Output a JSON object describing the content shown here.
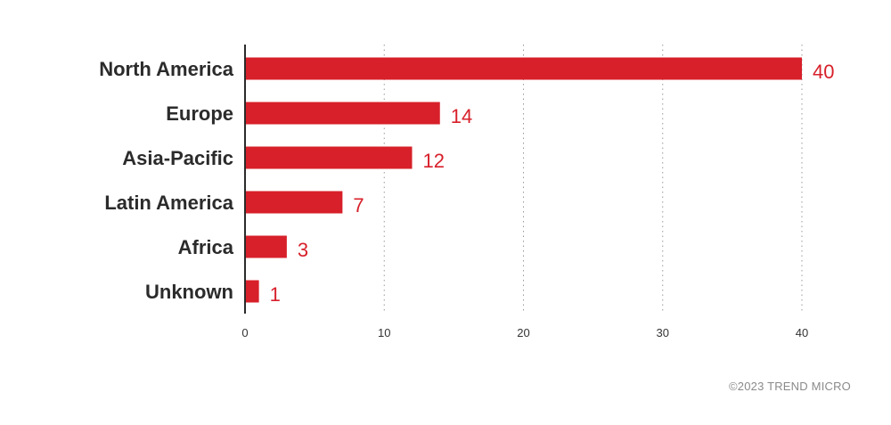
{
  "chart_data": {
    "type": "bar",
    "orientation": "horizontal",
    "categories": [
      "North America",
      "Europe",
      "Asia-Pacific",
      "Latin America",
      "Africa",
      "Unknown"
    ],
    "values": [
      40,
      14,
      12,
      7,
      3,
      1
    ],
    "xlim": [
      0,
      40
    ],
    "xticks": [
      0,
      10,
      20,
      30,
      40
    ],
    "grid": "vertical-dotted",
    "title": "",
    "xlabel": "",
    "ylabel": "",
    "bar_color": "#d7202a"
  },
  "footer": {
    "copyright": "©2023 TREND MICRO"
  },
  "colors": {
    "bar": "#d7202a",
    "axis": "#2b2b2b",
    "grid": "#9a9a9a",
    "label_text": "#2b2b2b",
    "data_label": "#d7202a",
    "footer_text": "#8a8a8a"
  }
}
